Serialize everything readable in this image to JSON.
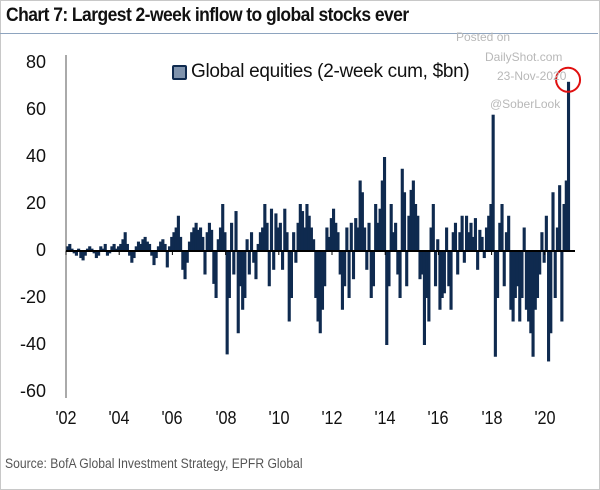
{
  "title": "Chart 7: Largest 2-week inflow to global stocks ever",
  "source": "Source: BofA Global Investment Strategy, EPFR Global",
  "watermark": {
    "line1": "Posted on",
    "line2": "DailyShot.com",
    "line3": "23-Nov-2020",
    "line4": "@SoberLook"
  },
  "colors": {
    "bars": "#0f2a4f",
    "highlight_circle": "#e01010",
    "axis": "#000000"
  },
  "chart_data": {
    "type": "bar",
    "title": "Chart 7: Largest 2-week inflow to global stocks ever",
    "xlabel": "",
    "ylabel": "",
    "legend": {
      "position": "top-left",
      "entries": [
        "Global equities (2-week cum, $bn)"
      ]
    },
    "series_name": "Global equities (2-week cum, $bn)",
    "ylim": [
      -60,
      80
    ],
    "yticks": [
      "80",
      "60",
      "40",
      "20",
      "0",
      "-20",
      "-40",
      "-60"
    ],
    "ytick_values": [
      80,
      60,
      40,
      20,
      0,
      -20,
      -40,
      -60
    ],
    "xticks": [
      "'02",
      "'04",
      "'06",
      "'08",
      "'10",
      "'12",
      "'14",
      "'16",
      "'18",
      "'20"
    ],
    "xtick_years": [
      2002,
      2004,
      2006,
      2008,
      2010,
      2012,
      2014,
      2016,
      2018,
      2020
    ],
    "grid": false,
    "annotation": "red circle around the record inflow (~72) in Nov 2020",
    "values_by_year_monthly": {
      "2002": [
        2,
        3,
        1,
        -1,
        -2,
        1,
        -3,
        -4,
        -2,
        1,
        2,
        1
      ],
      "2003": [
        -1,
        -3,
        -2,
        2,
        1,
        3,
        -2,
        -1,
        2,
        3,
        1,
        2
      ],
      "2004": [
        3,
        5,
        8,
        3,
        -2,
        -5,
        -3,
        2,
        4,
        3,
        5,
        6
      ],
      "2005": [
        4,
        3,
        -2,
        -6,
        -3,
        2,
        4,
        5,
        3,
        -7,
        2,
        6
      ],
      "2006": [
        8,
        10,
        15,
        6,
        -8,
        -12,
        -5,
        4,
        8,
        10,
        12,
        9
      ],
      "2007": [
        10,
        6,
        -10,
        8,
        12,
        9,
        -14,
        -20,
        5,
        10,
        20,
        8
      ],
      "2008": [
        -44,
        -20,
        12,
        -10,
        17,
        -35,
        -15,
        -25,
        -20,
        5,
        -10,
        8
      ],
      "2009": [
        -5,
        -12,
        3,
        8,
        10,
        20,
        12,
        -15,
        18,
        -8,
        16,
        10
      ],
      "2010": [
        12,
        -8,
        18,
        8,
        -30,
        -20,
        8,
        -5,
        12,
        20,
        17,
        10
      ],
      "2011": [
        20,
        15,
        10,
        5,
        -20,
        -30,
        -35,
        -25,
        -15,
        10,
        6,
        14
      ],
      "2012": [
        18,
        12,
        8,
        -10,
        -25,
        -15,
        10,
        -20,
        12,
        -12,
        14,
        10
      ],
      "2013": [
        30,
        25,
        10,
        -8,
        12,
        -20,
        -15,
        20,
        12,
        18,
        30,
        40
      ],
      "2014": [
        -40,
        -15,
        20,
        8,
        12,
        -10,
        -20,
        35,
        25,
        -15,
        15,
        26
      ],
      "2015": [
        30,
        20,
        15,
        -12,
        -10,
        -40,
        -20,
        -30,
        10,
        20,
        -15,
        5
      ],
      "2016": [
        -25,
        -20,
        -18,
        10,
        -15,
        -25,
        8,
        12,
        -10,
        8,
        15,
        -5
      ],
      "2017": [
        15,
        8,
        12,
        6,
        14,
        -8,
        9,
        6,
        -3,
        10,
        15,
        20
      ],
      "2018": [
        58,
        -45,
        -20,
        12,
        20,
        -15,
        8,
        15,
        -25,
        -30,
        -20,
        -15
      ],
      "2019": [
        -30,
        -20,
        10,
        -25,
        -30,
        -35,
        -45,
        -25,
        -20,
        -10,
        8,
        -5
      ],
      "2020": [
        15,
        -47,
        -35,
        25,
        -20,
        10,
        28,
        -30,
        20,
        30,
        72
      ]
    }
  }
}
